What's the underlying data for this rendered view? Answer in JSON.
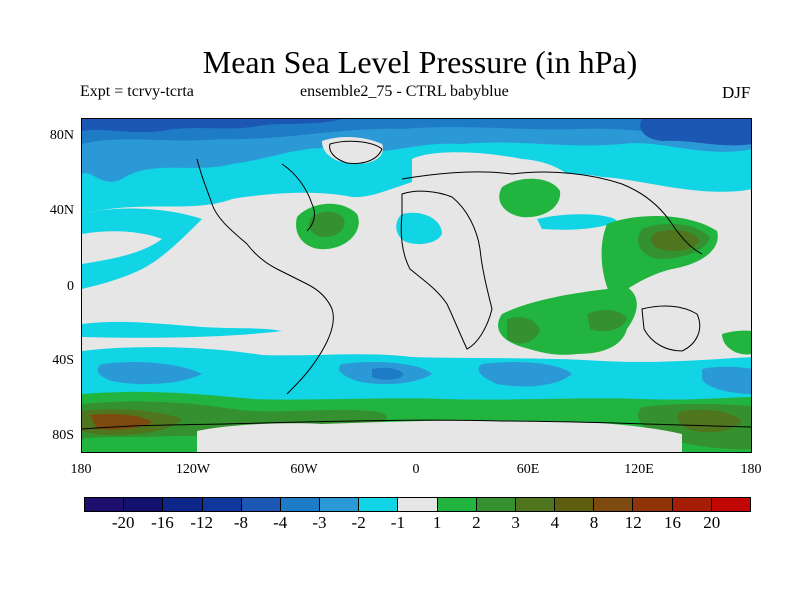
{
  "title": "Mean Sea Level Pressure (in hPa)",
  "subtitle_left": "Expt = tcrvy-tcrta",
  "subtitle_center": "ensemble2_75 - CTRL babyblue",
  "season": "DJF",
  "map": {
    "lat_labels": [
      "80N",
      "40N",
      "0",
      "40S",
      "80S"
    ],
    "lon_labels": [
      "180",
      "120W",
      "60W",
      "0",
      "60E",
      "120E",
      "180"
    ]
  },
  "colorbar": {
    "colors": [
      "#1e0f6e",
      "#14106e",
      "#0d2687",
      "#10389c",
      "#1c58b3",
      "#1e7cc7",
      "#2c99d7",
      "#11d4e4",
      "#e6e6e6",
      "#21b53f",
      "#35912f",
      "#4f761e",
      "#5e5e10",
      "#7d4b10",
      "#8f3309",
      "#a61d05",
      "#c10704"
    ],
    "labels": [
      "-20",
      "-16",
      "-12",
      "-8",
      "-4",
      "-3",
      "-2",
      "-1",
      "1",
      "2",
      "3",
      "4",
      "8",
      "12",
      "16",
      "20"
    ]
  },
  "legend_colors": {
    "neutral": "#e6e6e6",
    "neg1": "#11d4e4",
    "neg2": "#2c99d7",
    "neg3": "#1e7cc7",
    "neg4": "#1c58b3",
    "pos1": "#21b53f",
    "pos2": "#35912f",
    "pos3": "#4f761e",
    "pos4": "#5e5e10",
    "pos5": "#7d4b10"
  }
}
